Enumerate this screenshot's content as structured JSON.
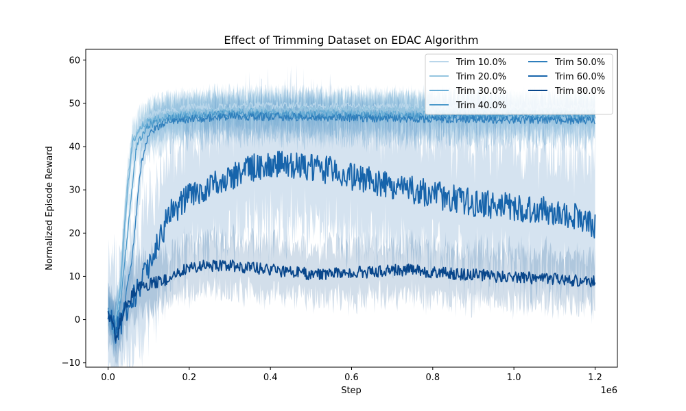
{
  "chart_data": {
    "type": "line",
    "title": "Effect of Trimming Dataset on EDAC Algorithm",
    "xlabel": "Step",
    "ylabel": "Normalized Episode Reward",
    "x_offset_label": "1e6",
    "xlim": [
      -55000,
      1255000
    ],
    "ylim": [
      -11,
      62.5
    ],
    "x_ticks": [
      0,
      200000,
      400000,
      600000,
      800000,
      1000000,
      1200000
    ],
    "x_tick_labels": [
      "0.0",
      "0.2",
      "0.4",
      "0.6",
      "0.8",
      "1.0",
      "1.2"
    ],
    "y_ticks": [
      -10,
      0,
      10,
      20,
      30,
      40,
      50,
      60
    ],
    "y_tick_labels": [
      "−10",
      "0",
      "10",
      "20",
      "30",
      "40",
      "50",
      "60"
    ],
    "grid": false,
    "legend_position": "top-right",
    "legend_columns": 2,
    "series": [
      {
        "name": "Trim 10.0%",
        "color": "#b9d6ea",
        "points": [
          [
            0,
            2
          ],
          [
            15000,
            -2
          ],
          [
            30000,
            5
          ],
          [
            45000,
            25
          ],
          [
            60000,
            40
          ],
          [
            80000,
            46
          ],
          [
            120000,
            48
          ],
          [
            200000,
            49
          ],
          [
            400000,
            49.5
          ],
          [
            800000,
            49
          ],
          [
            1200000,
            49
          ]
        ]
      },
      {
        "name": "Trim 20.0%",
        "color": "#94c4df",
        "points": [
          [
            0,
            2
          ],
          [
            15000,
            -1
          ],
          [
            30000,
            8
          ],
          [
            45000,
            30
          ],
          [
            60000,
            42
          ],
          [
            90000,
            46
          ],
          [
            150000,
            47.5
          ],
          [
            300000,
            48.5
          ],
          [
            700000,
            48.5
          ],
          [
            1200000,
            48
          ]
        ]
      },
      {
        "name": "Trim 30.0%",
        "color": "#6aaed6",
        "points": [
          [
            0,
            2
          ],
          [
            15000,
            -2
          ],
          [
            30000,
            6
          ],
          [
            45000,
            27
          ],
          [
            60000,
            41
          ],
          [
            90000,
            45.5
          ],
          [
            150000,
            47
          ],
          [
            300000,
            48
          ],
          [
            700000,
            47.5
          ],
          [
            1200000,
            47.5
          ]
        ]
      },
      {
        "name": "Trim 40.0%",
        "color": "#4a98c9",
        "points": [
          [
            0,
            2
          ],
          [
            15000,
            -3
          ],
          [
            30000,
            4
          ],
          [
            50000,
            22
          ],
          [
            70000,
            40
          ],
          [
            100000,
            45
          ],
          [
            150000,
            46.5
          ],
          [
            300000,
            47.5
          ],
          [
            700000,
            47
          ],
          [
            1200000,
            47
          ]
        ]
      },
      {
        "name": "Trim 50.0%",
        "color": "#2e7ebc",
        "points": [
          [
            0,
            2
          ],
          [
            20000,
            -3
          ],
          [
            40000,
            3
          ],
          [
            60000,
            15
          ],
          [
            80000,
            35
          ],
          [
            100000,
            43
          ],
          [
            150000,
            46
          ],
          [
            300000,
            47
          ],
          [
            700000,
            46.5
          ],
          [
            1200000,
            46
          ]
        ]
      },
      {
        "name": "Trim 60.0%",
        "color": "#1764ab",
        "points": [
          [
            0,
            2
          ],
          [
            20000,
            -3
          ],
          [
            50000,
            3
          ],
          [
            80000,
            8
          ],
          [
            110000,
            15
          ],
          [
            150000,
            24
          ],
          [
            200000,
            29
          ],
          [
            250000,
            31
          ],
          [
            300000,
            33
          ],
          [
            350000,
            35
          ],
          [
            400000,
            36
          ],
          [
            450000,
            35.5
          ],
          [
            500000,
            35
          ],
          [
            550000,
            34.5
          ],
          [
            600000,
            33
          ],
          [
            650000,
            32
          ],
          [
            700000,
            31
          ],
          [
            750000,
            30
          ],
          [
            800000,
            29
          ],
          [
            850000,
            28
          ],
          [
            900000,
            27
          ],
          [
            950000,
            26.5
          ],
          [
            1000000,
            26
          ],
          [
            1050000,
            25.5
          ],
          [
            1100000,
            25
          ],
          [
            1150000,
            24
          ],
          [
            1200000,
            22
          ]
        ]
      },
      {
        "name": "Trim 80.0%",
        "color": "#08468b",
        "points": [
          [
            0,
            2
          ],
          [
            20000,
            -4
          ],
          [
            40000,
            3
          ],
          [
            70000,
            7
          ],
          [
            100000,
            8
          ],
          [
            150000,
            9.5
          ],
          [
            200000,
            12
          ],
          [
            250000,
            12.5
          ],
          [
            300000,
            12.5
          ],
          [
            350000,
            12
          ],
          [
            400000,
            11.5
          ],
          [
            450000,
            11
          ],
          [
            500000,
            10.5
          ],
          [
            550000,
            10.5
          ],
          [
            600000,
            11
          ],
          [
            650000,
            11
          ],
          [
            700000,
            11.5
          ],
          [
            750000,
            11.5
          ],
          [
            800000,
            11
          ],
          [
            850000,
            10.5
          ],
          [
            900000,
            10.5
          ],
          [
            950000,
            10
          ],
          [
            1000000,
            10
          ],
          [
            1050000,
            9.5
          ],
          [
            1100000,
            9.5
          ],
          [
            1150000,
            9
          ],
          [
            1200000,
            9
          ]
        ]
      }
    ]
  }
}
